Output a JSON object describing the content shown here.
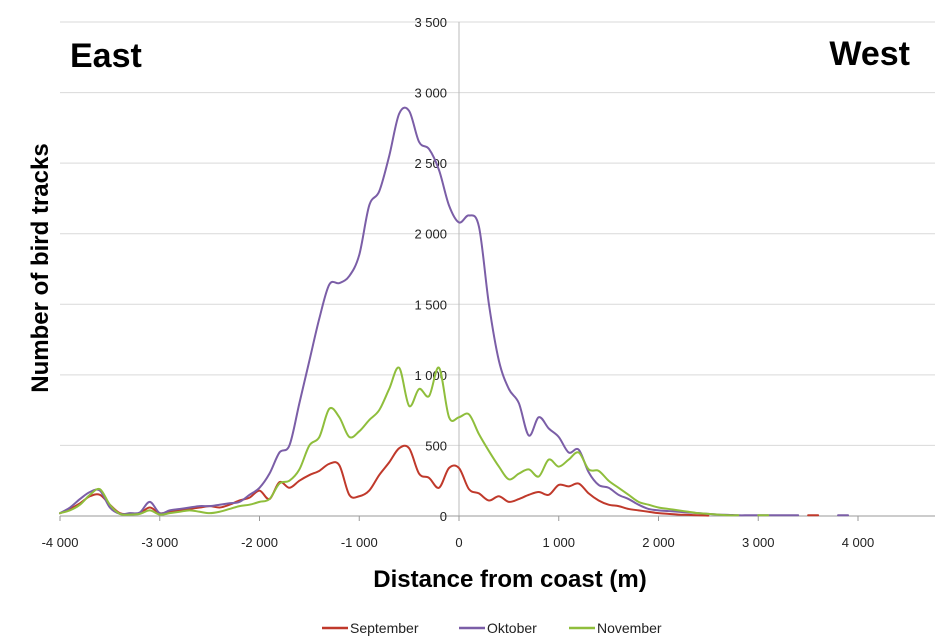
{
  "chart_data": {
    "type": "line",
    "title": "",
    "xlabel": "Distance from coast (m)",
    "ylabel": "Number of bird tracks",
    "xlim": [
      -4000,
      4000
    ],
    "ylim": [
      0,
      3500
    ],
    "grid": {
      "horizontal": true,
      "vertical": false
    },
    "legend_position": "bottom",
    "x_tick_labels": [
      "-4 000",
      "-3 000",
      "-2 000",
      "-1 000",
      "0",
      "1 000",
      "2 000",
      "3 000",
      "4 000"
    ],
    "y_tick_labels": [
      "0",
      "500",
      "1 000",
      "1 500",
      "2 000",
      "2 500",
      "3 000",
      "3 500"
    ],
    "annotations": {
      "left": "East",
      "right": "West"
    },
    "x": [
      -4000,
      -3900,
      -3800,
      -3700,
      -3600,
      -3500,
      -3400,
      -3300,
      -3200,
      -3100,
      -3000,
      -2900,
      -2800,
      -2700,
      -2600,
      -2500,
      -2400,
      -2300,
      -2200,
      -2100,
      -2000,
      -1900,
      -1800,
      -1700,
      -1600,
      -1500,
      -1400,
      -1300,
      -1200,
      -1100,
      -1000,
      -900,
      -800,
      -700,
      -600,
      -500,
      -400,
      -300,
      -200,
      -100,
      0,
      100,
      200,
      300,
      400,
      500,
      600,
      700,
      800,
      900,
      1000,
      1100,
      1200,
      1300,
      1400,
      1500,
      1600,
      1700,
      1800,
      1900,
      2000,
      2100,
      2200,
      2300,
      2400,
      2500,
      2600,
      2700,
      2800,
      2900,
      3000,
      3100,
      3200,
      3300,
      3400,
      3500,
      3600,
      3700,
      3800,
      3900,
      4000
    ],
    "series": [
      {
        "name": "September",
        "color": "#c0392b",
        "values": [
          20,
          50,
          90,
          140,
          150,
          80,
          20,
          15,
          20,
          60,
          20,
          30,
          40,
          50,
          60,
          70,
          60,
          80,
          110,
          130,
          180,
          120,
          240,
          200,
          250,
          290,
          320,
          370,
          360,
          150,
          140,
          180,
          290,
          380,
          480,
          480,
          300,
          270,
          200,
          340,
          340,
          190,
          160,
          110,
          140,
          100,
          120,
          150,
          170,
          150,
          220,
          210,
          230,
          160,
          110,
          80,
          70,
          50,
          40,
          30,
          20,
          15,
          10,
          8,
          5,
          3,
          null,
          null,
          null,
          null,
          null,
          null,
          null,
          null,
          null,
          5,
          5,
          null,
          null,
          null,
          null
        ]
      },
      {
        "name": "Oktober",
        "color": "#7b5ea7",
        "values": [
          20,
          60,
          120,
          170,
          180,
          60,
          15,
          20,
          25,
          100,
          20,
          40,
          50,
          60,
          70,
          70,
          80,
          90,
          100,
          150,
          200,
          300,
          450,
          500,
          800,
          1100,
          1400,
          1640,
          1650,
          1700,
          1850,
          2200,
          2300,
          2550,
          2850,
          2870,
          2650,
          2600,
          2450,
          2200,
          2080,
          2130,
          2050,
          1500,
          1100,
          900,
          800,
          570,
          700,
          620,
          560,
          450,
          470,
          310,
          220,
          200,
          150,
          120,
          80,
          50,
          40,
          35,
          30,
          25,
          20,
          15,
          10,
          8,
          5,
          5,
          5,
          5,
          5,
          5,
          5,
          null,
          null,
          null,
          5,
          5,
          null
        ]
      },
      {
        "name": "November",
        "color": "#8fbe3c",
        "values": [
          20,
          40,
          80,
          150,
          190,
          80,
          15,
          10,
          15,
          40,
          10,
          20,
          30,
          40,
          30,
          20,
          30,
          50,
          70,
          80,
          100,
          120,
          230,
          250,
          330,
          500,
          560,
          760,
          700,
          560,
          600,
          680,
          750,
          900,
          1050,
          780,
          900,
          850,
          1050,
          700,
          700,
          720,
          580,
          460,
          350,
          260,
          300,
          330,
          280,
          400,
          350,
          400,
          450,
          330,
          320,
          250,
          200,
          150,
          100,
          80,
          60,
          50,
          40,
          30,
          20,
          15,
          10,
          5,
          5,
          null,
          5,
          5,
          null,
          null,
          null,
          null,
          null,
          null,
          null,
          null,
          null
        ]
      }
    ]
  }
}
